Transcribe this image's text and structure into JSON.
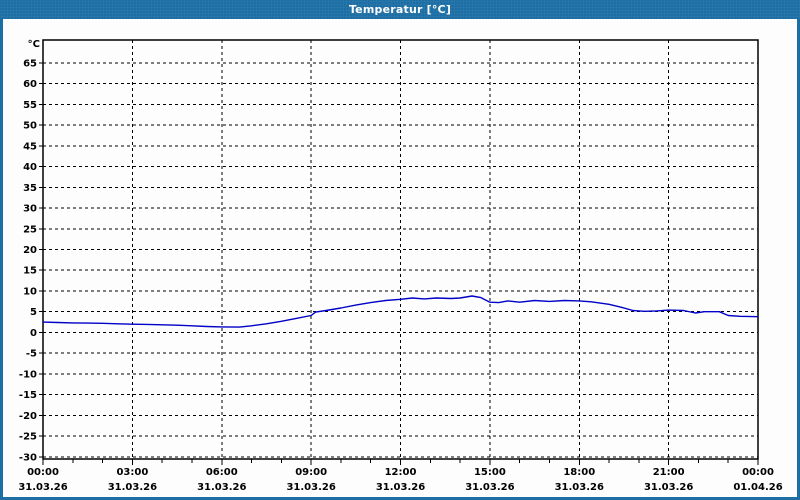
{
  "window": {
    "title": "Temperatur [°C]"
  },
  "colors": {
    "titlebar": "#1c6ea4",
    "frame": "#1c6ea4",
    "plot_background": "#fdfdfd",
    "grid": "#000000",
    "axis": "#000000",
    "text": "#000000",
    "line": "#0000c8"
  },
  "chart_data": {
    "type": "line",
    "title": "Temperatur [°C]",
    "ylabel": "°C",
    "y_unit_label": "°C",
    "grid": true,
    "legend": "none",
    "ylim": [
      -30.5,
      70.5
    ],
    "y_ticks": [
      65,
      60,
      55,
      50,
      45,
      40,
      35,
      30,
      25,
      20,
      15,
      10,
      5,
      0,
      -5,
      -10,
      -15,
      -20,
      -25,
      -30
    ],
    "x_hours_range": [
      0,
      24
    ],
    "x_minor_tick_every_hours": 1,
    "x_major_ticks": [
      {
        "hour": 0,
        "time": "00:00",
        "date": "31.03.26"
      },
      {
        "hour": 3,
        "time": "03:00",
        "date": "31.03.26"
      },
      {
        "hour": 6,
        "time": "06:00",
        "date": "31.03.26"
      },
      {
        "hour": 9,
        "time": "09:00",
        "date": "31.03.26"
      },
      {
        "hour": 12,
        "time": "12:00",
        "date": "31.03.26"
      },
      {
        "hour": 15,
        "time": "15:00",
        "date": "31.03.26"
      },
      {
        "hour": 18,
        "time": "18:00",
        "date": "31.03.26"
      },
      {
        "hour": 21,
        "time": "21:00",
        "date": "31.03.26"
      },
      {
        "hour": 24,
        "time": "00:00",
        "date": "01.04.26"
      }
    ],
    "series": [
      {
        "name": "Temperatur",
        "color": "#0000c8",
        "points": [
          [
            0,
            2.5
          ],
          [
            0.5,
            2.4
          ],
          [
            1,
            2.3
          ],
          [
            1.5,
            2.25
          ],
          [
            2,
            2.2
          ],
          [
            2.5,
            2.1
          ],
          [
            3,
            2.0
          ],
          [
            3.5,
            1.95
          ],
          [
            4,
            1.85
          ],
          [
            4.5,
            1.75
          ],
          [
            5,
            1.6
          ],
          [
            5.5,
            1.45
          ],
          [
            6,
            1.35
          ],
          [
            6.6,
            1.3
          ],
          [
            7,
            1.6
          ],
          [
            7.5,
            2.1
          ],
          [
            8,
            2.7
          ],
          [
            8.5,
            3.4
          ],
          [
            9,
            4.1
          ],
          [
            9.15,
            4.9
          ],
          [
            9.5,
            5.3
          ],
          [
            10,
            5.9
          ],
          [
            10.5,
            6.6
          ],
          [
            11,
            7.2
          ],
          [
            11.5,
            7.7
          ],
          [
            12,
            8.0
          ],
          [
            12.4,
            8.3
          ],
          [
            12.8,
            8.1
          ],
          [
            13.2,
            8.3
          ],
          [
            13.7,
            8.2
          ],
          [
            14,
            8.3
          ],
          [
            14.4,
            8.8
          ],
          [
            14.7,
            8.4
          ],
          [
            15,
            7.3
          ],
          [
            15.3,
            7.2
          ],
          [
            15.6,
            7.6
          ],
          [
            16,
            7.3
          ],
          [
            16.5,
            7.7
          ],
          [
            17,
            7.5
          ],
          [
            17.5,
            7.7
          ],
          [
            18,
            7.6
          ],
          [
            18.4,
            7.4
          ],
          [
            19,
            6.8
          ],
          [
            19.4,
            6.1
          ],
          [
            19.8,
            5.3
          ],
          [
            20.2,
            5.1
          ],
          [
            20.6,
            5.2
          ],
          [
            21,
            5.4
          ],
          [
            21.5,
            5.3
          ],
          [
            21.9,
            4.7
          ],
          [
            22.2,
            5.0
          ],
          [
            22.7,
            5.0
          ],
          [
            23,
            4.1
          ],
          [
            23.4,
            3.9
          ],
          [
            24,
            3.8
          ]
        ]
      }
    ]
  }
}
